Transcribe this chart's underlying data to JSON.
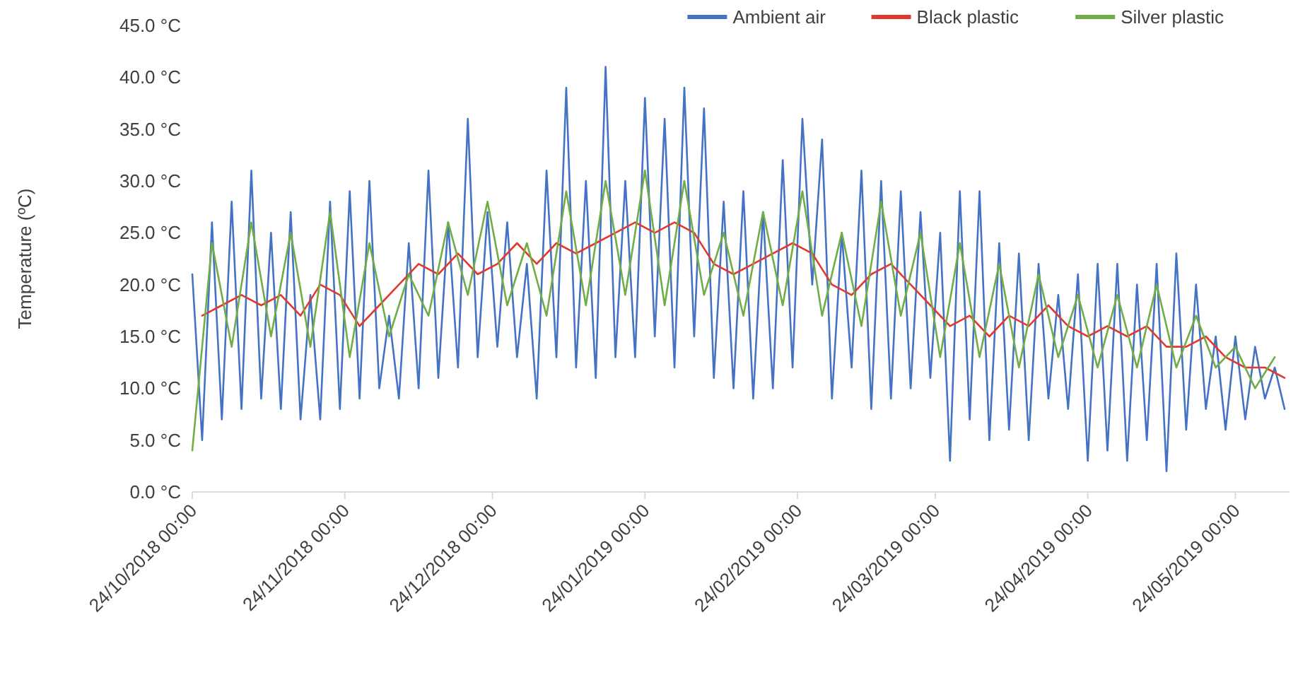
{
  "chart_data": {
    "type": "line",
    "ylabel": "Temperature (ºC)",
    "xlim": [
      "2018-10-24",
      "2019-06-04"
    ],
    "xticks": [
      {
        "value": "2018-10-24",
        "label": "24/10/2018 00:00"
      },
      {
        "value": "2018-11-24",
        "label": "24/11/2018 00:00"
      },
      {
        "value": "2018-12-24",
        "label": "24/12/2018 00:00"
      },
      {
        "value": "2019-01-24",
        "label": "24/01/2019 00:00"
      },
      {
        "value": "2019-02-24",
        "label": "24/02/2019 00:00"
      },
      {
        "value": "2019-03-24",
        "label": "24/03/2019 00:00"
      },
      {
        "value": "2019-04-24",
        "label": "24/04/2019 00:00"
      },
      {
        "value": "2019-05-24",
        "label": "24/05/2019 00:00"
      }
    ],
    "ylim": [
      0,
      45
    ],
    "yticks": [
      {
        "value": 0,
        "label": "0.0 °C"
      },
      {
        "value": 5,
        "label": "5.0 °C"
      },
      {
        "value": 10,
        "label": "10.0 °C"
      },
      {
        "value": 15,
        "label": "15.0 °C"
      },
      {
        "value": 20,
        "label": "20.0 °C"
      },
      {
        "value": 25,
        "label": "25.0 °C"
      },
      {
        "value": 30,
        "label": "30.0 °C"
      },
      {
        "value": 35,
        "label": "35.0 °C"
      },
      {
        "value": 40,
        "label": "40.0 °C"
      },
      {
        "value": 45,
        "label": "45.0 °C"
      }
    ],
    "grid": false,
    "legend": "top right",
    "marker": "none",
    "line_style": "solid",
    "series": [
      {
        "name": "Ambient air",
        "color": "#4472c4",
        "x": [
          "2018-10-24",
          "2018-10-26",
          "2018-10-28",
          "2018-10-30",
          "2018-11-01",
          "2018-11-03",
          "2018-11-05",
          "2018-11-07",
          "2018-11-09",
          "2018-11-11",
          "2018-11-13",
          "2018-11-15",
          "2018-11-17",
          "2018-11-19",
          "2018-11-21",
          "2018-11-23",
          "2018-11-25",
          "2018-11-27",
          "2018-11-29",
          "2018-12-01",
          "2018-12-03",
          "2018-12-05",
          "2018-12-07",
          "2018-12-09",
          "2018-12-11",
          "2018-12-13",
          "2018-12-15",
          "2018-12-17",
          "2018-12-19",
          "2018-12-21",
          "2018-12-23",
          "2018-12-25",
          "2018-12-27",
          "2018-12-29",
          "2018-12-31",
          "2019-01-02",
          "2019-01-04",
          "2019-01-06",
          "2019-01-08",
          "2019-01-10",
          "2019-01-12",
          "2019-01-14",
          "2019-01-16",
          "2019-01-18",
          "2019-01-20",
          "2019-01-22",
          "2019-01-24",
          "2019-01-26",
          "2019-01-28",
          "2019-01-30",
          "2019-02-01",
          "2019-02-03",
          "2019-02-05",
          "2019-02-07",
          "2019-02-09",
          "2019-02-11",
          "2019-02-13",
          "2019-02-15",
          "2019-02-17",
          "2019-02-19",
          "2019-02-21",
          "2019-02-23",
          "2019-02-25",
          "2019-02-27",
          "2019-03-01",
          "2019-03-03",
          "2019-03-05",
          "2019-03-07",
          "2019-03-09",
          "2019-03-11",
          "2019-03-13",
          "2019-03-15",
          "2019-03-17",
          "2019-03-19",
          "2019-03-21",
          "2019-03-23",
          "2019-03-25",
          "2019-03-27",
          "2019-03-29",
          "2019-03-31",
          "2019-04-02",
          "2019-04-04",
          "2019-04-06",
          "2019-04-08",
          "2019-04-10",
          "2019-04-12",
          "2019-04-14",
          "2019-04-16",
          "2019-04-18",
          "2019-04-20",
          "2019-04-22",
          "2019-04-24",
          "2019-04-26",
          "2019-04-28",
          "2019-04-30",
          "2019-05-02",
          "2019-05-04",
          "2019-05-06",
          "2019-05-08",
          "2019-05-10",
          "2019-05-12",
          "2019-05-14",
          "2019-05-16",
          "2019-05-18",
          "2019-05-20",
          "2019-05-22",
          "2019-05-24",
          "2019-05-26",
          "2019-05-28",
          "2019-05-30",
          "2019-06-01",
          "2019-06-03"
        ],
        "values": [
          21,
          5,
          26,
          7,
          28,
          8,
          31,
          9,
          25,
          8,
          27,
          7,
          19,
          7,
          28,
          8,
          29,
          9,
          30,
          10,
          17,
          9,
          24,
          10,
          31,
          11,
          26,
          12,
          36,
          13,
          27,
          14,
          26,
          13,
          22,
          9,
          31,
          13,
          39,
          12,
          30,
          11,
          41,
          13,
          30,
          13,
          38,
          15,
          36,
          12,
          39,
          15,
          37,
          11,
          28,
          10,
          29,
          9,
          27,
          10,
          32,
          12,
          36,
          20,
          34,
          9,
          25,
          12,
          31,
          8,
          30,
          9,
          29,
          10,
          27,
          11,
          25,
          3,
          29,
          7,
          29,
          5,
          24,
          6,
          23,
          5,
          22,
          9,
          19,
          8,
          21,
          3,
          22,
          4,
          22,
          3,
          20,
          5,
          22,
          2,
          23,
          6,
          20,
          8,
          15,
          6,
          15,
          7,
          14,
          9,
          12,
          8
        ]
      },
      {
        "name": "Black plastic",
        "color": "#e03a2e",
        "x": [
          "2018-10-26",
          "2018-10-30",
          "2018-11-03",
          "2018-11-07",
          "2018-11-11",
          "2018-11-15",
          "2018-11-19",
          "2018-11-23",
          "2018-11-27",
          "2018-12-01",
          "2018-12-05",
          "2018-12-09",
          "2018-12-13",
          "2018-12-17",
          "2018-12-21",
          "2018-12-25",
          "2018-12-29",
          "2019-01-02",
          "2019-01-06",
          "2019-01-10",
          "2019-01-14",
          "2019-01-18",
          "2019-01-22",
          "2019-01-26",
          "2019-01-30",
          "2019-02-03",
          "2019-02-07",
          "2019-02-11",
          "2019-02-15",
          "2019-02-19",
          "2019-02-23",
          "2019-02-27",
          "2019-03-03",
          "2019-03-07",
          "2019-03-11",
          "2019-03-15",
          "2019-03-19",
          "2019-03-23",
          "2019-03-27",
          "2019-03-31",
          "2019-04-04",
          "2019-04-08",
          "2019-04-12",
          "2019-04-16",
          "2019-04-20",
          "2019-04-24",
          "2019-04-28",
          "2019-05-02",
          "2019-05-06",
          "2019-05-10",
          "2019-05-14",
          "2019-05-18",
          "2019-05-22",
          "2019-05-26",
          "2019-05-30",
          "2019-06-03"
        ],
        "values": [
          17,
          18,
          19,
          18,
          19,
          17,
          20,
          19,
          16,
          18,
          20,
          22,
          21,
          23,
          21,
          22,
          24,
          22,
          24,
          23,
          24,
          25,
          26,
          25,
          26,
          25,
          22,
          21,
          22,
          23,
          24,
          23,
          20,
          19,
          21,
          22,
          20,
          18,
          16,
          17,
          15,
          17,
          16,
          18,
          16,
          15,
          16,
          15,
          16,
          14,
          14,
          15,
          13,
          12,
          12,
          11
        ]
      },
      {
        "name": "Silver plastic",
        "color": "#70ad47",
        "x": [
          "2018-10-24",
          "2018-10-28",
          "2018-11-01",
          "2018-11-05",
          "2018-11-09",
          "2018-11-13",
          "2018-11-17",
          "2018-11-21",
          "2018-11-25",
          "2018-11-29",
          "2018-12-03",
          "2018-12-07",
          "2018-12-11",
          "2018-12-15",
          "2018-12-19",
          "2018-12-23",
          "2018-12-27",
          "2018-12-31",
          "2019-01-04",
          "2019-01-08",
          "2019-01-12",
          "2019-01-16",
          "2019-01-20",
          "2019-01-24",
          "2019-01-28",
          "2019-02-01",
          "2019-02-05",
          "2019-02-09",
          "2019-02-13",
          "2019-02-17",
          "2019-02-21",
          "2019-02-25",
          "2019-03-01",
          "2019-03-05",
          "2019-03-09",
          "2019-03-13",
          "2019-03-17",
          "2019-03-21",
          "2019-03-25",
          "2019-03-29",
          "2019-04-02",
          "2019-04-06",
          "2019-04-10",
          "2019-04-14",
          "2019-04-18",
          "2019-04-22",
          "2019-04-26",
          "2019-04-30",
          "2019-05-04",
          "2019-05-08",
          "2019-05-12",
          "2019-05-16",
          "2019-05-20",
          "2019-05-24",
          "2019-05-28",
          "2019-06-01"
        ],
        "values": [
          4,
          24,
          14,
          26,
          15,
          25,
          14,
          27,
          13,
          24,
          15,
          21,
          17,
          26,
          19,
          28,
          18,
          24,
          17,
          29,
          18,
          30,
          19,
          31,
          18,
          30,
          19,
          25,
          17,
          27,
          18,
          29,
          17,
          25,
          16,
          28,
          17,
          25,
          13,
          24,
          13,
          22,
          12,
          21,
          13,
          19,
          12,
          19,
          12,
          20,
          12,
          17,
          12,
          14,
          10,
          13
        ]
      }
    ]
  }
}
